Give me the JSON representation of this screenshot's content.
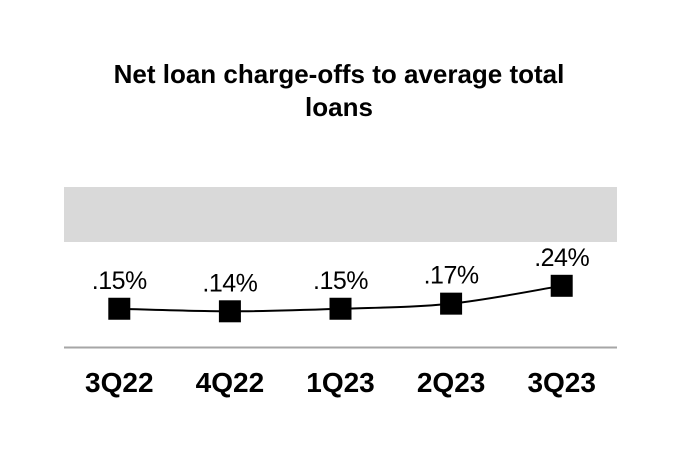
{
  "chart_data": {
    "type": "line",
    "title": "Net loan charge-offs to average total loans",
    "categories": [
      "3Q22",
      "4Q22",
      "1Q23",
      "2Q23",
      "3Q23"
    ],
    "values": [
      0.15,
      0.14,
      0.15,
      0.17,
      0.24
    ],
    "data_labels": [
      ".15%",
      ".14%",
      ".15%",
      ".17%",
      ".24%"
    ],
    "series_name": "Net loan charge-offs to average total loans",
    "xlabel": "",
    "ylabel": "",
    "unit": "%",
    "legend": false,
    "grid": false,
    "marker_shape": "square",
    "colors": {
      "line": "#000000",
      "marker": "#000000",
      "title_text": "#000000",
      "label_text": "#000000",
      "highlight_band": "#D9D9D9",
      "axis_line": "#A6A6A6",
      "background": "#FFFFFF"
    }
  }
}
